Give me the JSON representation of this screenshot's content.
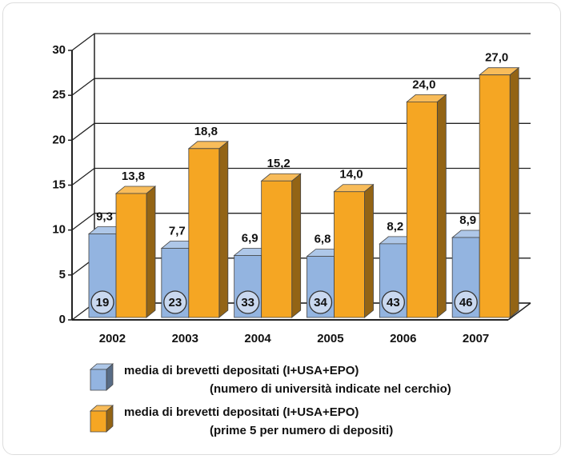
{
  "chart_data": {
    "type": "bar3d",
    "categories": [
      "2002",
      "2003",
      "2004",
      "2005",
      "2006",
      "2007"
    ],
    "series": [
      {
        "name": "media di brevetti depositati (I+USA+EPO)",
        "note": "(numero di università indicate nel cerchio)",
        "color": "#93b4e0",
        "values": [
          9.3,
          7.7,
          6.9,
          6.8,
          8.2,
          8.9
        ],
        "value_labels": [
          "9,3",
          "7,7",
          "6,9",
          "6,8",
          "8,2",
          "8,9"
        ],
        "annotations": [
          19,
          23,
          33,
          34,
          43,
          46
        ]
      },
      {
        "name": "media di brevetti depositati (I+USA+EPO)",
        "note": "(prime 5 per numero di depositi)",
        "color": "#f5a623",
        "values": [
          13.8,
          18.8,
          15.2,
          14.0,
          24.0,
          27.0
        ],
        "value_labels": [
          "13,8",
          "18,8",
          "15,2",
          "14,0",
          "24,0",
          "27,0"
        ]
      }
    ],
    "ylim": [
      0,
      30
    ],
    "yticks": [
      0,
      5,
      10,
      15,
      20,
      25,
      30
    ],
    "grid": true
  }
}
